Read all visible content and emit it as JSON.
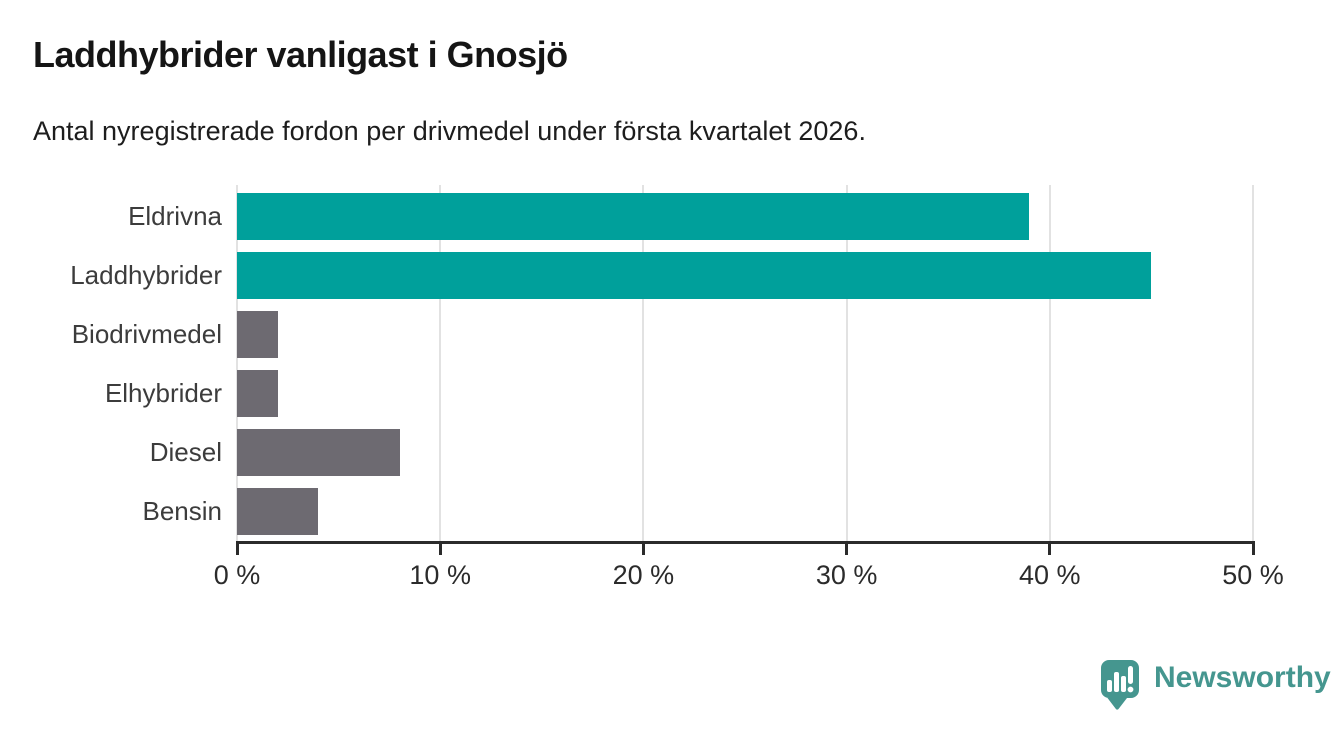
{
  "header": {
    "title": "Laddhybrider vanligast i Gnosjö",
    "subtitle": "Antal nyregistrerade fordon per drivmedel under första kvartalet 2026."
  },
  "chart_data": {
    "type": "bar",
    "orientation": "horizontal",
    "title": "Laddhybrider vanligast i Gnosjö",
    "subtitle": "Antal nyregistrerade fordon per drivmedel under första kvartalet 2026.",
    "categories": [
      "Eldrivna",
      "Laddhybrider",
      "Biodrivmedel",
      "Elhybrider",
      "Diesel",
      "Bensin"
    ],
    "values": [
      39,
      45,
      2,
      2,
      8,
      4
    ],
    "unit": "%",
    "bar_colors": [
      "#00a09b",
      "#00a09b",
      "#6d6a71",
      "#6d6a71",
      "#6d6a71",
      "#6d6a71"
    ],
    "xlabel": "",
    "ylabel": "",
    "xlim": [
      0,
      50
    ],
    "x_ticks": [
      0,
      10,
      20,
      30,
      40,
      50
    ],
    "x_tick_labels": [
      "0 %",
      "10 %",
      "20 %",
      "30 %",
      "40 %",
      "50 %"
    ],
    "grid": "vertical-only",
    "legend_position": "none"
  },
  "colors": {
    "highlight_teal": "#00a09b",
    "neutral_gray": "#6d6a71",
    "gridline": "#e2e2e2",
    "axis": "#2b2b2b",
    "title_text": "#151515",
    "label_text": "#3c3c3c",
    "logo_teal": "#45968f"
  },
  "footer": {
    "brand": "Newsworthy",
    "logo_icon": "bar-chart-speech-bubble-icon"
  }
}
